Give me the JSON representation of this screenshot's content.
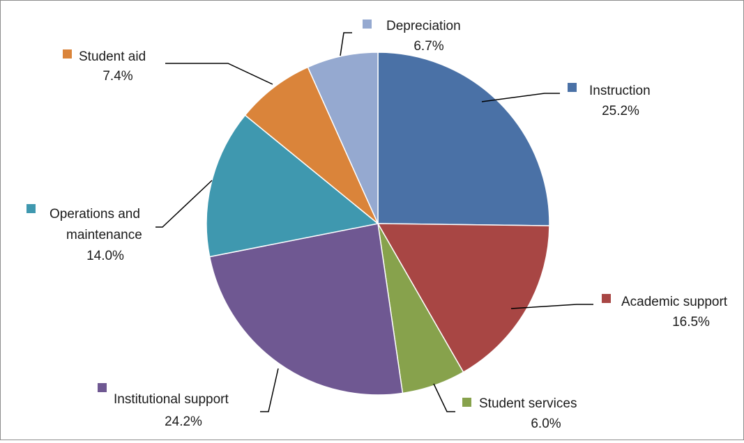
{
  "chart_data": {
    "type": "pie",
    "title": "",
    "start_angle_deg": 0,
    "direction": "clockwise",
    "slices": [
      {
        "label": "Instruction",
        "percent_label": "25.2%",
        "value": 25.2,
        "color": "#4a71a6"
      },
      {
        "label": "Academic support",
        "percent_label": "16.5%",
        "value": 16.5,
        "color": "#a84644"
      },
      {
        "label": "Student services",
        "percent_label": "6.0%",
        "value": 6.0,
        "color": "#87a24c"
      },
      {
        "label": "Institutional support",
        "percent_label": "24.2%",
        "value": 24.2,
        "color": "#6f5892"
      },
      {
        "label": "Operations and maintenance",
        "percent_label": "14.0%",
        "value": 14.0,
        "color": "#3f98af"
      },
      {
        "label": "Student aid",
        "percent_label": "7.4%",
        "value": 7.4,
        "color": "#da843a"
      },
      {
        "label": "Depreciation",
        "percent_label": "6.7%",
        "value": 6.7,
        "color": "#95a9d0"
      }
    ],
    "data_labels": "category and percent with legend key, leader lines"
  }
}
